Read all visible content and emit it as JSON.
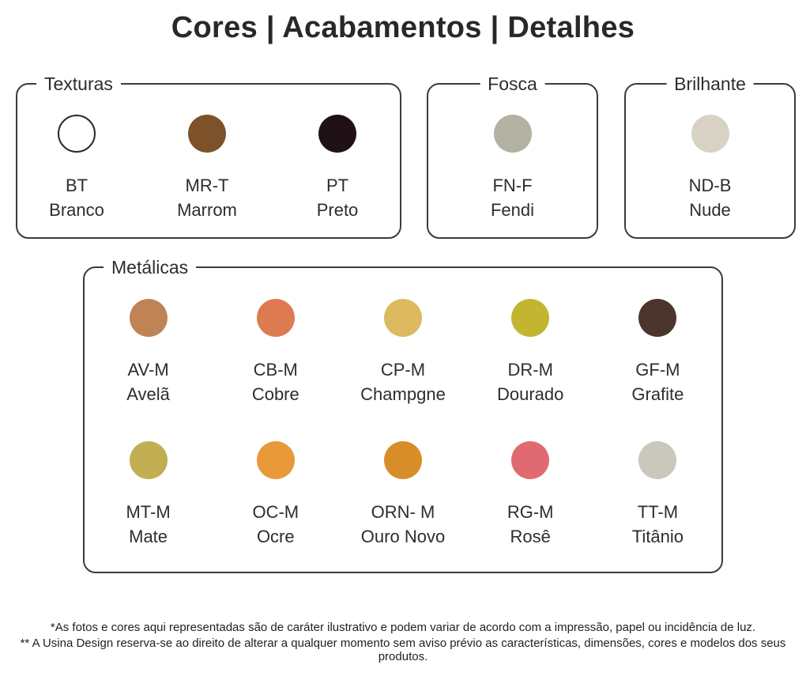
{
  "title": "Cores | Acabamentos | Detalhes",
  "colors": {
    "box_border": "#3b3b3b",
    "text": "#2d2d30"
  },
  "groups": [
    {
      "label": "Texturas",
      "swatches": [
        {
          "code": "BT",
          "name": "Branco",
          "color": "#ffffff"
        },
        {
          "code": "MR-T",
          "name": "Marrom",
          "color": "#7d5129"
        },
        {
          "code": "PT",
          "name": "Preto",
          "color": "#201116"
        }
      ]
    },
    {
      "label": "Fosca",
      "swatches": [
        {
          "code": "FN-F",
          "name": "Fendi",
          "color": "#b3b1a2"
        }
      ]
    },
    {
      "label": "Brilhante",
      "swatches": [
        {
          "code": "ND-B",
          "name": "Nude",
          "color": "#d8d2c5"
        }
      ]
    },
    {
      "label": "Metálicas",
      "swatches": [
        {
          "code": "AV-M",
          "name": "Avelã",
          "color": "#bf8355"
        },
        {
          "code": "CB-M",
          "name": "Cobre",
          "color": "#dd7a52"
        },
        {
          "code": "CP-M",
          "name": "Champgne",
          "color": "#ddb95f"
        },
        {
          "code": "DR-M",
          "name": "Dourado",
          "color": "#c4b531"
        },
        {
          "code": "GF-M",
          "name": "Grafite",
          "color": "#4a342c"
        },
        {
          "code": "MT-M",
          "name": "Mate",
          "color": "#c1ae52"
        },
        {
          "code": "OC-M",
          "name": "Ocre",
          "color": "#e8993a"
        },
        {
          "code": "ORN- M",
          "name": "Ouro Novo",
          "color": "#d78d28"
        },
        {
          "code": "RG-M",
          "name": "Rosê",
          "color": "#e06a72"
        },
        {
          "code": "TT-M",
          "name": "Titânio",
          "color": "#cac8bd"
        }
      ]
    }
  ],
  "footnotes": [
    "*As fotos e cores aqui representadas são de caráter ilustrativo e podem variar de acordo com a impressão, papel ou incidência de luz.",
    "** A Usina Design reserva-se ao direito de alterar a qualquer momento sem  aviso prévio  as características, dimensões, cores e modelos dos seus produtos."
  ]
}
